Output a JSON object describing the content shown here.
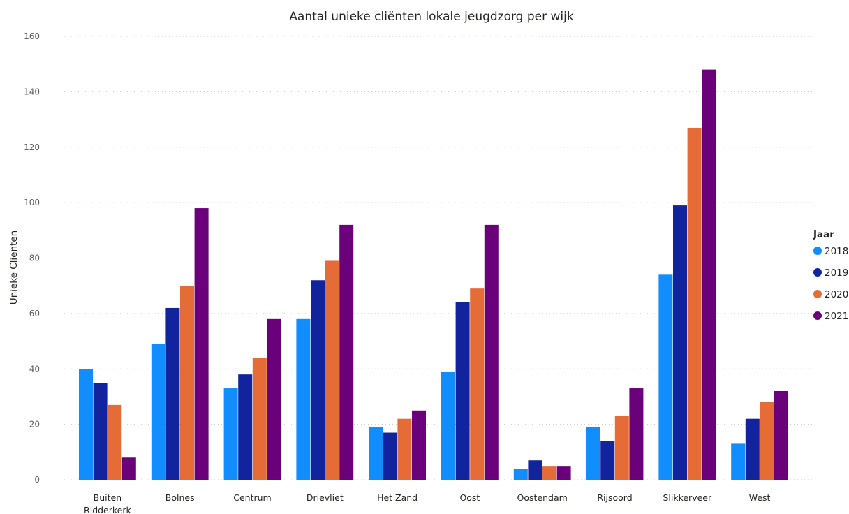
{
  "chart_data": {
    "type": "bar",
    "title": "Aantal unieke cliënten lokale jeugdzorg per wijk",
    "xlabel": "",
    "ylabel": "Unieke Clienten",
    "ylim": [
      0,
      160
    ],
    "yticks": [
      0,
      20,
      40,
      60,
      80,
      100,
      120,
      140,
      160
    ],
    "grid": true,
    "legend": {
      "title": "Jaar",
      "placement": "right"
    },
    "categories": [
      [
        "Buiten",
        "Ridderkerk"
      ],
      [
        "Bolnes"
      ],
      [
        "Centrum"
      ],
      [
        "Drievliet"
      ],
      [
        "Het Zand"
      ],
      [
        "Oost"
      ],
      [
        "Oostendam"
      ],
      [
        "Rijsoord"
      ],
      [
        "Slikkerveer"
      ],
      [
        "West"
      ]
    ],
    "series": [
      {
        "name": "2018",
        "color": "#118DFF",
        "values": [
          40,
          49,
          33,
          58,
          19,
          39,
          4,
          19,
          74,
          13
        ]
      },
      {
        "name": "2019",
        "color": "#12239E",
        "values": [
          35,
          62,
          38,
          72,
          17,
          64,
          7,
          14,
          99,
          22
        ]
      },
      {
        "name": "2020",
        "color": "#E66C37",
        "values": [
          27,
          70,
          44,
          79,
          22,
          69,
          5,
          23,
          127,
          28
        ]
      },
      {
        "name": "2021",
        "color": "#6B007B",
        "values": [
          8,
          98,
          58,
          92,
          25,
          92,
          5,
          33,
          148,
          32
        ]
      }
    ]
  }
}
